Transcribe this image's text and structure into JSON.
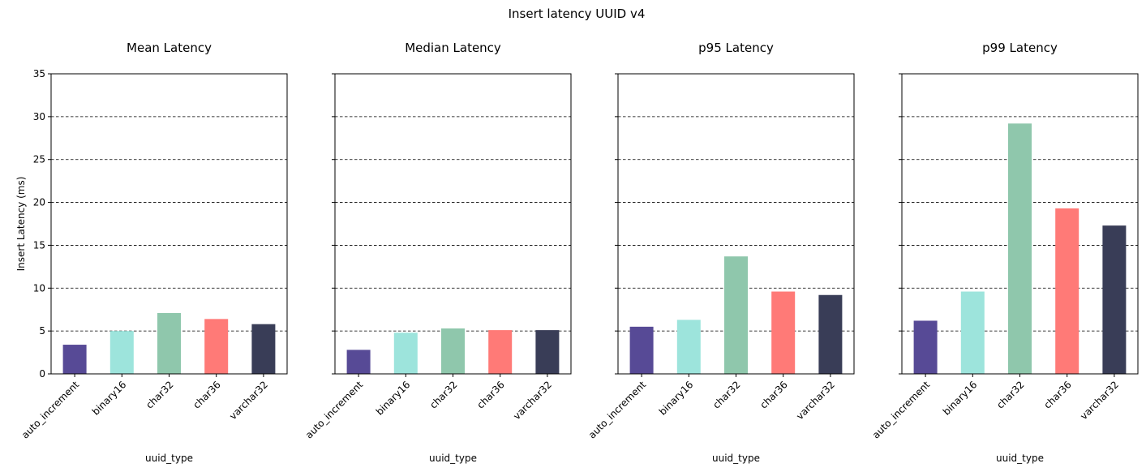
{
  "title": "Insert latency UUID v4",
  "categories": [
    "auto_increment",
    "binary16",
    "char32",
    "char36",
    "varchar32"
  ],
  "colors": [
    "#574a96",
    "#9de4dc",
    "#8fc7ac",
    "#ff7a77",
    "#393d57"
  ],
  "chart_data": [
    {
      "type": "bar",
      "title": "Mean Latency",
      "xlabel": "uuid_type",
      "ylabel": "Insert Latency (ms)",
      "categories": [
        "auto_increment",
        "binary16",
        "char32",
        "char36",
        "varchar32"
      ],
      "values": [
        3.4,
        5.0,
        7.1,
        6.4,
        5.8
      ],
      "ylim": [
        0,
        35
      ],
      "yticks": [
        0,
        5,
        10,
        15,
        20,
        25,
        30,
        35
      ],
      "grid": "horizontal-dashed"
    },
    {
      "type": "bar",
      "title": "Median Latency",
      "xlabel": "uuid_type",
      "ylabel": "",
      "categories": [
        "auto_increment",
        "binary16",
        "char32",
        "char36",
        "varchar32"
      ],
      "values": [
        2.8,
        4.8,
        5.3,
        5.1,
        5.1
      ],
      "ylim": [
        0,
        35
      ],
      "yticks": [
        0,
        5,
        10,
        15,
        20,
        25,
        30,
        35
      ],
      "grid": "horizontal-dashed"
    },
    {
      "type": "bar",
      "title": "p95 Latency",
      "xlabel": "uuid_type",
      "ylabel": "",
      "categories": [
        "auto_increment",
        "binary16",
        "char32",
        "char36",
        "varchar32"
      ],
      "values": [
        5.5,
        6.3,
        13.7,
        9.6,
        9.2
      ],
      "ylim": [
        0,
        35
      ],
      "yticks": [
        0,
        5,
        10,
        15,
        20,
        25,
        30,
        35
      ],
      "grid": "horizontal-dashed"
    },
    {
      "type": "bar",
      "title": "p99 Latency",
      "xlabel": "uuid_type",
      "ylabel": "",
      "categories": [
        "auto_increment",
        "binary16",
        "char32",
        "char36",
        "varchar32"
      ],
      "values": [
        6.2,
        9.6,
        29.2,
        19.3,
        17.3
      ],
      "ylim": [
        0,
        35
      ],
      "yticks": [
        0,
        5,
        10,
        15,
        20,
        25,
        30,
        35
      ],
      "grid": "horizontal-dashed"
    }
  ]
}
